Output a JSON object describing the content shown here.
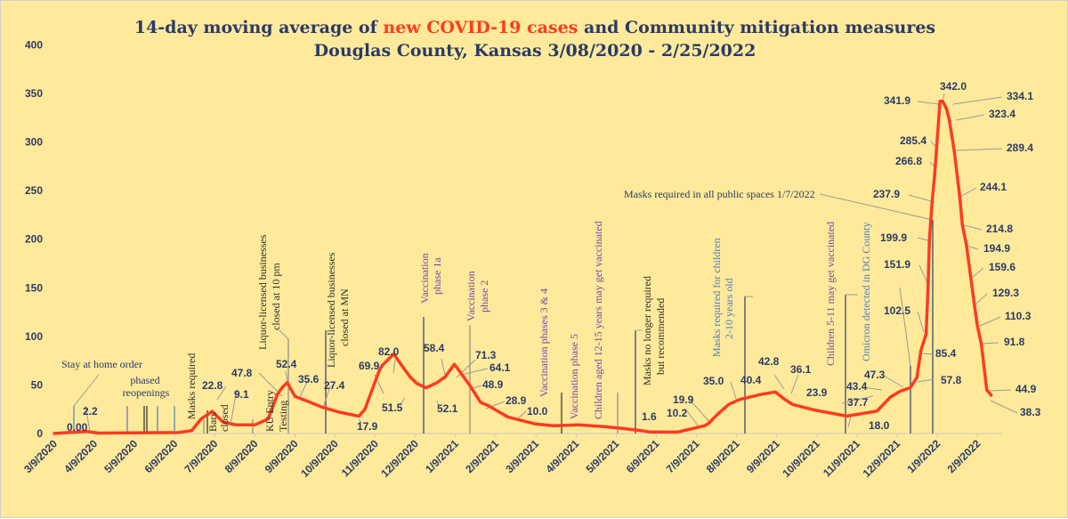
{
  "chart_data": {
    "type": "line",
    "title": {
      "line1_a": "14-day moving average of ",
      "line1_b": "new COVID-19 cases",
      "line1_c": " and Community mitigation measures",
      "line2": "Douglas County, Kansas 3/08/2020 - 2/25/2022"
    },
    "xlabel": "",
    "ylabel": "",
    "ylim": [
      0,
      400
    ],
    "yticks": [
      "0",
      "50",
      "100",
      "150",
      "200",
      "250",
      "300",
      "350",
      "400"
    ],
    "xticks": [
      "3/9/2020",
      "4/9/2020",
      "5/9/2020",
      "6/9/2020",
      "7/9/2020",
      "8/9/2020",
      "9/9/2020",
      "10/9/2020",
      "11/9/2020",
      "12/9/2020",
      "1/9/2021",
      "2/9/2021",
      "3/9/2021",
      "4/9/2021",
      "5/9/2021",
      "6/9/2021",
      "7/9/2021",
      "8/9/2021",
      "9/9/2021",
      "10/9/2021",
      "11/9/2021",
      "12/9/2021",
      "1/9/2022",
      "2/9/2022"
    ],
    "grid": false,
    "series": [
      {
        "color": "#ff3b1f",
        "points": [
          [
            "2020-03-08",
            0
          ],
          [
            "2020-04-03",
            2.2
          ],
          [
            "2020-04-12",
            0.5
          ],
          [
            "2020-06-12",
            1
          ],
          [
            "2020-06-22",
            3
          ],
          [
            "2020-06-29",
            15
          ],
          [
            "2020-07-07",
            22.8
          ],
          [
            "2020-07-15",
            12
          ],
          [
            "2020-07-24",
            9.1
          ],
          [
            "2020-08-09",
            9
          ],
          [
            "2020-08-19",
            15
          ],
          [
            "2020-08-26",
            40
          ],
          [
            "2020-08-30",
            47.8
          ],
          [
            "2020-09-03",
            52.4
          ],
          [
            "2020-09-09",
            38
          ],
          [
            "2020-09-14",
            35.6
          ],
          [
            "2020-09-29",
            27.4
          ],
          [
            "2020-10-12",
            22
          ],
          [
            "2020-10-27",
            17.9
          ],
          [
            "2020-11-01",
            25
          ],
          [
            "2020-11-12",
            65
          ],
          [
            "2020-11-14",
            69.9
          ],
          [
            "2020-11-23",
            82.0
          ],
          [
            "2020-11-29",
            70
          ],
          [
            "2020-12-05",
            58
          ],
          [
            "2020-12-10",
            51.5
          ],
          [
            "2020-12-17",
            47
          ],
          [
            "2020-12-25",
            52.1
          ],
          [
            "2021-01-01",
            58.4
          ],
          [
            "2021-01-08",
            71.3
          ],
          [
            "2021-01-12",
            64.1
          ],
          [
            "2021-01-20",
            48.9
          ],
          [
            "2021-01-28",
            32
          ],
          [
            "2021-02-03",
            28.9
          ],
          [
            "2021-02-18",
            17
          ],
          [
            "2021-03-08",
            10.0
          ],
          [
            "2021-03-22",
            8
          ],
          [
            "2021-04-11",
            9
          ],
          [
            "2021-05-01",
            7
          ],
          [
            "2021-05-15",
            5
          ],
          [
            "2021-05-28",
            3
          ],
          [
            "2021-06-04",
            1.6
          ],
          [
            "2021-06-25",
            1.5
          ],
          [
            "2021-07-15",
            8
          ],
          [
            "2021-07-18",
            10.2
          ],
          [
            "2021-07-25",
            19.9
          ],
          [
            "2021-08-03",
            30
          ],
          [
            "2021-08-11",
            35.0
          ],
          [
            "2021-08-28",
            40.4
          ],
          [
            "2021-09-08",
            42.8
          ],
          [
            "2021-09-14",
            36.1
          ],
          [
            "2021-09-21",
            30
          ],
          [
            "2021-10-08",
            23.9
          ],
          [
            "2021-11-01",
            18.0
          ],
          [
            "2021-11-24",
            23
          ],
          [
            "2021-12-04",
            37.7
          ],
          [
            "2021-12-11",
            43.4
          ],
          [
            "2021-12-19",
            47.3
          ],
          [
            "2021-12-24",
            57.8
          ],
          [
            "2021-12-27",
            85.4
          ],
          [
            "2021-12-31",
            102.5
          ],
          [
            "2022-01-02",
            151.9
          ],
          [
            "2022-01-03",
            199.9
          ],
          [
            "2022-01-05",
            237.9
          ],
          [
            "2022-01-07",
            266.8
          ],
          [
            "2022-01-08",
            285.4
          ],
          [
            "2022-01-11",
            341.9
          ],
          [
            "2022-01-13",
            342.0
          ],
          [
            "2022-01-16",
            334.1
          ],
          [
            "2022-01-18",
            323.4
          ],
          [
            "2022-01-22",
            289.4
          ],
          [
            "2022-01-26",
            244.1
          ],
          [
            "2022-01-28",
            214.8
          ],
          [
            "2022-01-31",
            194.9
          ],
          [
            "2022-02-04",
            159.6
          ],
          [
            "2022-02-07",
            129.3
          ],
          [
            "2022-02-09",
            110.3
          ],
          [
            "2022-02-12",
            91.8
          ],
          [
            "2022-02-16",
            44.9
          ],
          [
            "2022-02-20",
            38.3
          ]
        ]
      }
    ],
    "data_labels": [
      "0.00",
      "2.2",
      "22.8",
      "9.1",
      "47.8",
      "52.4",
      "35.6",
      "27.4",
      "17.9",
      "69.9",
      "82.0",
      "51.5",
      "58.4",
      "52.1",
      "71.3",
      "64.1",
      "48.9",
      "28.9",
      "10.0",
      "1.6",
      "10.2",
      "19.9",
      "35.0",
      "40.4",
      "42.8",
      "36.1",
      "23.9",
      "18.0",
      "37.7",
      "43.4",
      "47.3",
      "57.8",
      "85.4",
      "102.5",
      "151.9",
      "199.9",
      "237.9",
      "266.8",
      "285.4",
      "341.9",
      "342.0",
      "334.1",
      "323.4",
      "289.4",
      "244.1",
      "214.8",
      "194.9",
      "159.6",
      "129.3",
      "110.3",
      "91.8",
      "44.9",
      "38.3"
    ],
    "annotations": [
      {
        "text": "Stay at home order",
        "color": "#2b3a67"
      },
      {
        "text": "phased",
        "color": "#2b3a67"
      },
      {
        "text": "reopenings",
        "color": "#2b3a67"
      },
      {
        "text": "Masks required",
        "color": "#2b2b2b"
      },
      {
        "text": "Bars",
        "color": "#2b2b2b"
      },
      {
        "text": "closed",
        "color": "#2b2b2b"
      },
      {
        "text": "KU Entry",
        "color": "#2b2b2b"
      },
      {
        "text": "Testing",
        "color": "#2b2b2b"
      },
      {
        "text": "Liquor-licensed businesses",
        "color": "#2b2b2b"
      },
      {
        "text": "closed at 10 pm",
        "color": "#2b2b2b"
      },
      {
        "text": "Liquor-licensed businesses",
        "color": "#2b2b2b"
      },
      {
        "text": "closed at MN",
        "color": "#2b2b2b"
      },
      {
        "text": "Vaccination",
        "color": "#7a3fb0"
      },
      {
        "text": "phase 1a",
        "color": "#7a3fb0"
      },
      {
        "text": "Vaccination",
        "color": "#7a3fb0"
      },
      {
        "text": "phase 2",
        "color": "#7a3fb0"
      },
      {
        "text": "Vaccination phases 3 & 4",
        "color": "#7a3fb0"
      },
      {
        "text": "Vaccination phase 5",
        "color": "#7a3fb0"
      },
      {
        "text": "Children aged 12-15 years may get vaccinated",
        "color": "#7a3fb0"
      },
      {
        "text": "Masks no longer required",
        "color": "#2b2b2b"
      },
      {
        "text": "but recommended",
        "color": "#2b2b2b"
      },
      {
        "text": "Masks required for children",
        "color": "#4a7cc4"
      },
      {
        "text": "2-10 years old",
        "color": "#4a7cc4"
      },
      {
        "text": "Children 5-11 may get vaccinated",
        "color": "#7a3fb0"
      },
      {
        "text": "Omicron detected in DG  County",
        "color": "#4a7cc4"
      },
      {
        "text": "Masks required in all public spaces 1/7/2022",
        "color": "#2b3a67"
      }
    ]
  }
}
